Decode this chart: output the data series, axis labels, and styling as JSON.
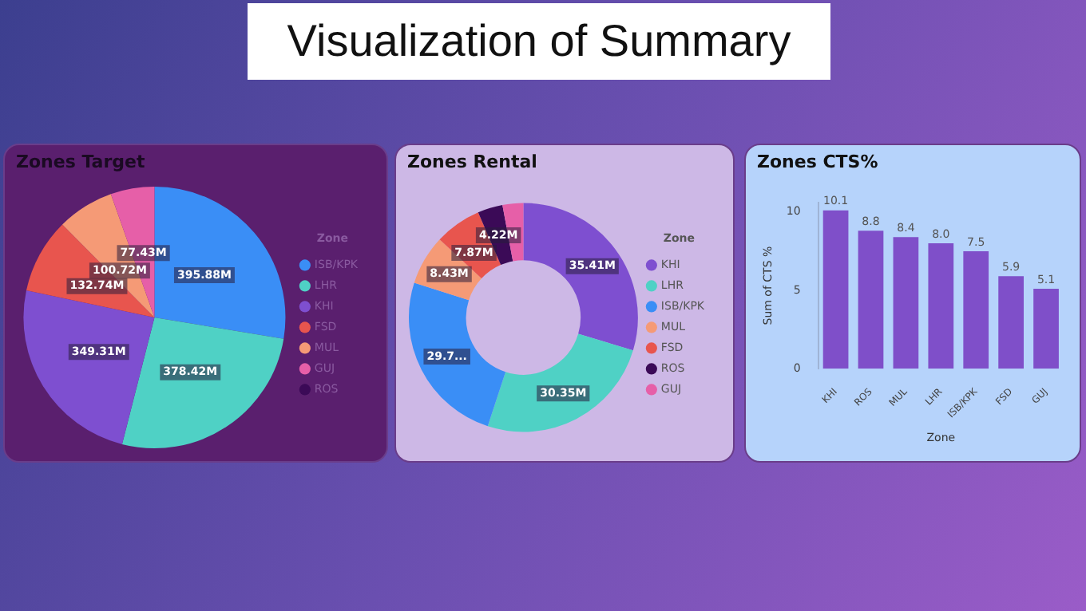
{
  "chart_data": [
    {
      "type": "pie",
      "title": "Zones Target",
      "annotations": [
        "Visualization of Summary"
      ],
      "categories": [
        "ISB/KPK",
        "LHR",
        "KHI",
        "FSD",
        "MUL",
        "GUJ",
        "ROS"
      ],
      "values": [
        395.88,
        378.42,
        349.31,
        132.74,
        100.72,
        77.43,
        null
      ],
      "value_labels": [
        "395.88M",
        "378.42M",
        "349.31M",
        "132.74M",
        "100.72M",
        "77.43M",
        null
      ],
      "colors": [
        "#3a8ef6",
        "#4fd1c5",
        "#7e4fd0",
        "#e8554e",
        "#f59a76",
        "#e65fa8",
        "#3b0a57"
      ],
      "legend": "right",
      "legend_title": "Zone"
    },
    {
      "type": "donut",
      "title": "Zones Rental",
      "categories": [
        "KHI",
        "LHR",
        "ISB/KPK",
        "MUL",
        "FSD",
        "ROS",
        "GUJ"
      ],
      "values": [
        35.41,
        30.35,
        29.7,
        8.43,
        7.87,
        4.22,
        3.5
      ],
      "value_labels": [
        "35.41M",
        "30.35M",
        "29.7...",
        "8.43M",
        "7.87M",
        "4.22M",
        null
      ],
      "colors": [
        "#7e4fd0",
        "#4fd1c5",
        "#3a8ef6",
        "#f59a76",
        "#e8554e",
        "#3b0a57",
        "#e65fa8"
      ],
      "legend": "right",
      "legend_title": "Zone"
    },
    {
      "type": "bar",
      "title": "Zones CTS%",
      "xlabel": "Zone",
      "ylabel": "Sum of CTS %",
      "categories": [
        "KHI",
        "ROS",
        "MUL",
        "LHR",
        "ISB/KPK",
        "FSD",
        "GUJ"
      ],
      "values": [
        10.1,
        8.8,
        8.4,
        8.0,
        7.5,
        5.9,
        5.1
      ],
      "value_labels": [
        "10.1",
        "8.8",
        "8.4",
        "8.0",
        "7.5",
        "5.9",
        "5.1"
      ],
      "color": "#7f4fc9",
      "ylim": [
        0,
        10.6
      ],
      "yticks": [
        0,
        5,
        10
      ]
    }
  ]
}
